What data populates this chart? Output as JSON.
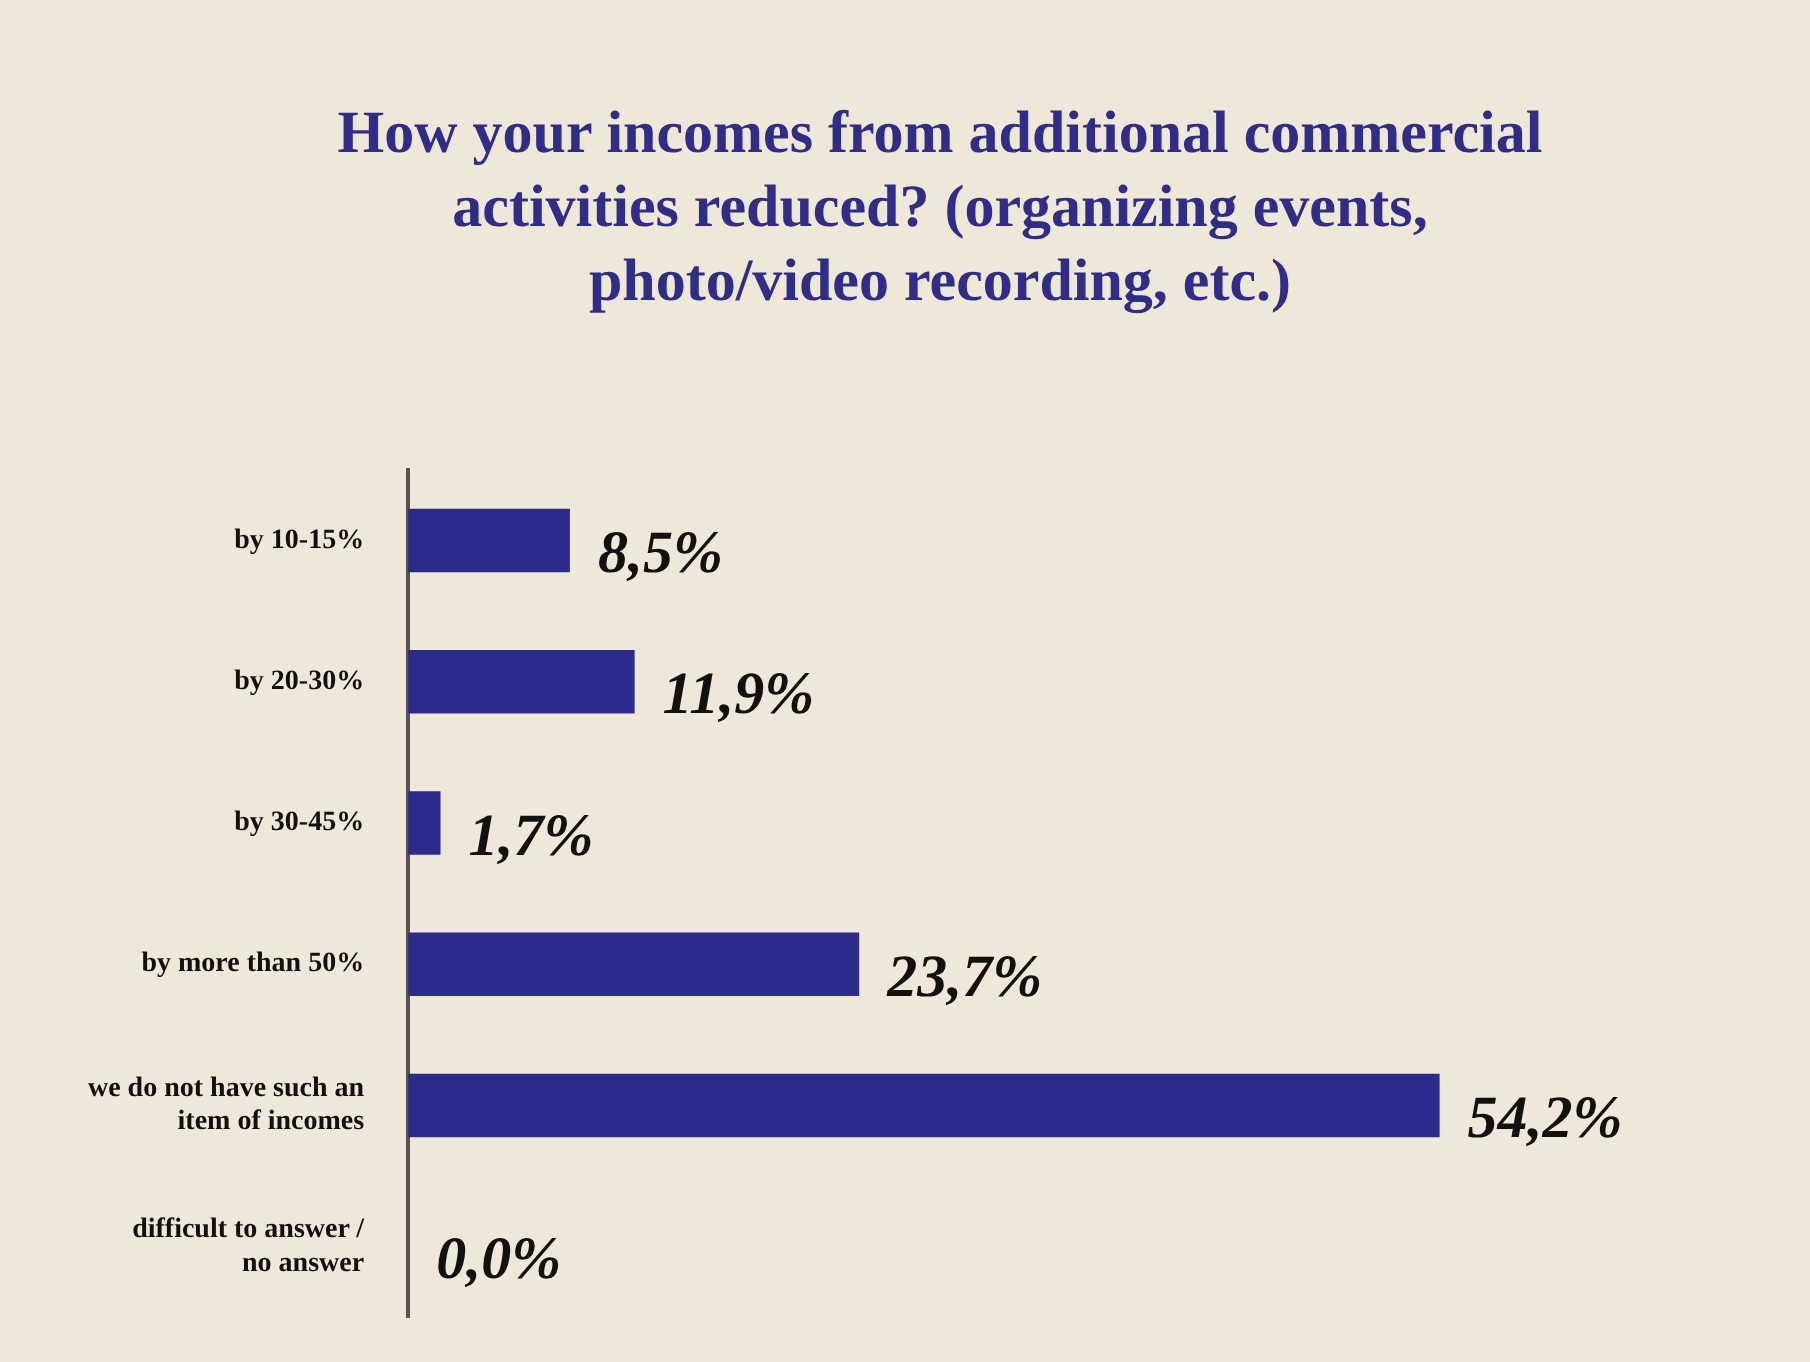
{
  "chart_data": {
    "type": "bar",
    "orientation": "horizontal",
    "title": "How your incomes from additional commercial activities reduced? (organizing events, photo/video recording, etc.)",
    "categories": [
      "by 10-15%",
      "by 20-30%",
      "by 30-45%",
      "by more than 50%",
      "we do not have such an item of incomes",
      "difficult to answer / no answer"
    ],
    "values": [
      8.5,
      11.9,
      1.7,
      23.7,
      54.2,
      0.0
    ],
    "value_labels": [
      "8,5%",
      "11,9%",
      "1,7%",
      "23,7%",
      "54,2%",
      "0,0%"
    ],
    "color": "#2b2b8c",
    "grid": false,
    "legend": false
  }
}
